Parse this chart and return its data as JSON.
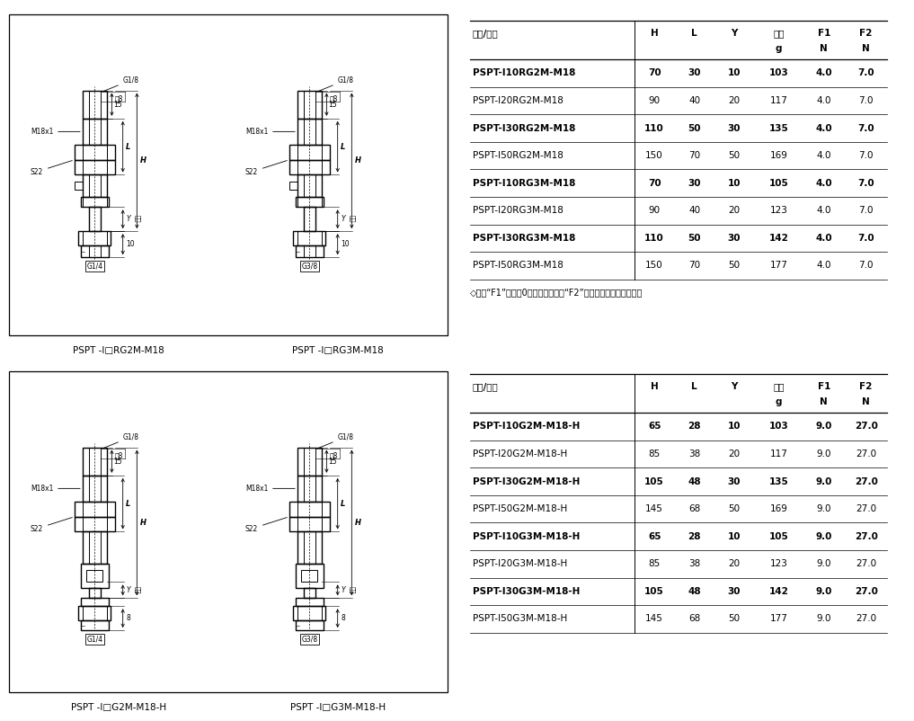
{
  "bg_color": "#ffffff",
  "table1": {
    "header1": [
      "型号/尺寸",
      "H",
      "L",
      "Y",
      "单重",
      "F1",
      "F2"
    ],
    "header2": [
      "",
      "",
      "",
      "",
      "g",
      "N",
      "N"
    ],
    "rows": [
      [
        "PSPT-I10RG2M-M18",
        "70",
        "30",
        "10",
        "103",
        "4.0",
        "7.0"
      ],
      [
        "PSPT-I20RG2M-M18",
        "90",
        "40",
        "20",
        "117",
        "4.0",
        "7.0"
      ],
      [
        "PSPT-I30RG2M-M18",
        "110",
        "50",
        "30",
        "135",
        "4.0",
        "7.0"
      ],
      [
        "PSPT-I50RG2M-M18",
        "150",
        "70",
        "50",
        "169",
        "4.0",
        "7.0"
      ],
      [
        "PSPT-I10RG3M-M18",
        "70",
        "30",
        "10",
        "105",
        "4.0",
        "7.0"
      ],
      [
        "PSPT-I20RG3M-M18",
        "90",
        "40",
        "20",
        "123",
        "4.0",
        "7.0"
      ],
      [
        "PSPT-I30RG3M-M18",
        "110",
        "50",
        "30",
        "142",
        "4.0",
        "7.0"
      ],
      [
        "PSPT-I50RG3M-M18",
        "150",
        "70",
        "50",
        "177",
        "4.0",
        "7.0"
      ]
    ],
    "note": "◇注：“F1”表示丸0行程弹簧弹力，“F2”表示行程最大弹簧弹力。"
  },
  "table2": {
    "header1": [
      "型号/尺寸",
      "H",
      "L",
      "Y",
      "单重",
      "F1",
      "F2"
    ],
    "header2": [
      "",
      "",
      "",
      "",
      "g",
      "N",
      "N"
    ],
    "rows": [
      [
        "PSPT-I10G2M-M18-H",
        "65",
        "28",
        "10",
        "103",
        "9.0",
        "27.0"
      ],
      [
        "PSPT-I20G2M-M18-H",
        "85",
        "38",
        "20",
        "117",
        "9.0",
        "27.0"
      ],
      [
        "PSPT-I30G2M-M18-H",
        "105",
        "48",
        "30",
        "135",
        "9.0",
        "27.0"
      ],
      [
        "PSPT-I50G2M-M18-H",
        "145",
        "68",
        "50",
        "169",
        "9.0",
        "27.0"
      ],
      [
        "PSPT-I10G3M-M18-H",
        "65",
        "28",
        "10",
        "105",
        "9.0",
        "27.0"
      ],
      [
        "PSPT-I20G3M-M18-H",
        "85",
        "38",
        "20",
        "123",
        "9.0",
        "27.0"
      ],
      [
        "PSPT-I30G3M-M18-H",
        "105",
        "48",
        "30",
        "142",
        "9.0",
        "27.0"
      ],
      [
        "PSPT-I50G3M-M18-H",
        "145",
        "68",
        "50",
        "177",
        "9.0",
        "27.0"
      ]
    ]
  },
  "label_tl": "PSPT -I□RG2M-M18",
  "label_tr": "PSPT -I□RG3M-M18",
  "label_bl": "PSPT -I□G2M-M18-H",
  "label_br": "PSPT -I□G3M-M18-H"
}
